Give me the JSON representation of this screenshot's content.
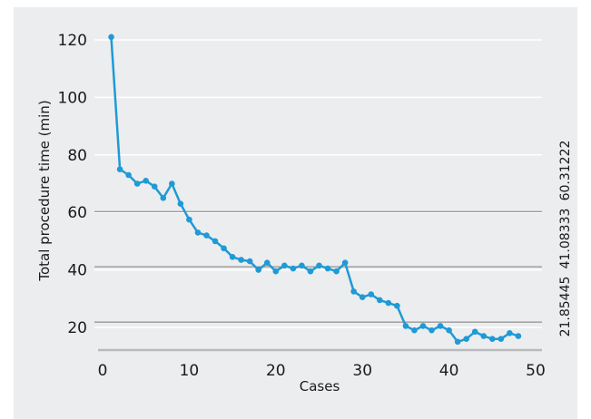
{
  "colors": {
    "panel": "#ecedee",
    "series": "#1f9ad6",
    "gridline": "#ffffff",
    "refline": "#7a7a7a",
    "axisline": "#b9babc"
  },
  "chart_data": {
    "type": "line",
    "xlabel": "Cases",
    "ylabel": "Total procedure time (min)",
    "xlim": [
      0,
      50
    ],
    "ylim": [
      12,
      125
    ],
    "xticks": [
      0,
      10,
      20,
      30,
      40,
      50
    ],
    "yticks": [
      20,
      40,
      60,
      80,
      100,
      120
    ],
    "grid": true,
    "series": [
      {
        "x": [
          1,
          2,
          3,
          4,
          5,
          6,
          7,
          8,
          9,
          10,
          11,
          12,
          13,
          14,
          15,
          16,
          17,
          18,
          19,
          20,
          21,
          22,
          23,
          24,
          25,
          26,
          27,
          28,
          29,
          30,
          31,
          32,
          33,
          34,
          35,
          36,
          37,
          38,
          39,
          40,
          41,
          42,
          43,
          44,
          45,
          46,
          47,
          48
        ],
        "y": [
          121,
          75,
          73,
          70,
          71,
          69,
          65,
          70,
          63,
          57.5,
          53,
          52,
          50,
          47.5,
          44.5,
          43.5,
          43,
          40,
          42.5,
          39.5,
          41.5,
          40.5,
          41.5,
          39.5,
          41.5,
          40.5,
          39.5,
          42.5,
          32.5,
          30.5,
          31.5,
          29.5,
          28.5,
          27.5,
          20.5,
          19,
          20.5,
          19,
          20.5,
          19,
          15,
          16,
          18.5,
          17,
          16,
          16,
          18,
          17
        ]
      }
    ],
    "reference_lines": [
      {
        "value": 21.85445,
        "label": "21.85445"
      },
      {
        "value": 41.08333,
        "label": "41.08333"
      },
      {
        "value": 60.31222,
        "label": "60.31222"
      }
    ]
  }
}
